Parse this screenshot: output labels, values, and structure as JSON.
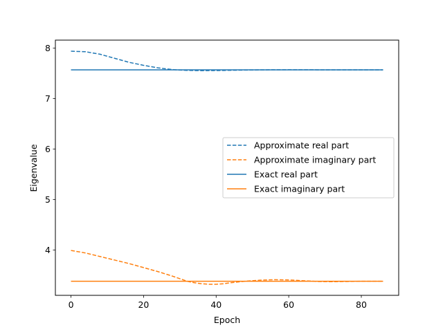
{
  "chart_data": {
    "type": "line",
    "title": "",
    "xlabel": "Epoch",
    "ylabel": "Eigenvalue",
    "xlim": [
      -4.3,
      90.3
    ],
    "ylim": [
      3.1,
      8.16
    ],
    "xticks": [
      0,
      20,
      40,
      60,
      80
    ],
    "yticks": [
      4,
      5,
      6,
      7,
      8
    ],
    "grid": false,
    "legend_position": "center-right",
    "series": [
      {
        "name": "Approximate real part",
        "color": "#1f77b4",
        "style": "dashed",
        "x": [
          0,
          4,
          8,
          12,
          16,
          20,
          24,
          28,
          32,
          36,
          40,
          44,
          48,
          52,
          56,
          60,
          64,
          68,
          72,
          76,
          80,
          86
        ],
        "y": [
          7.94,
          7.93,
          7.88,
          7.8,
          7.72,
          7.66,
          7.61,
          7.575,
          7.56,
          7.555,
          7.557,
          7.562,
          7.567,
          7.57,
          7.572,
          7.573,
          7.572,
          7.571,
          7.57,
          7.57,
          7.57,
          7.57
        ]
      },
      {
        "name": "Approximate imaginary part",
        "color": "#ff7f0e",
        "style": "dashed",
        "x": [
          0,
          4,
          8,
          12,
          16,
          20,
          24,
          28,
          30,
          32,
          34,
          36,
          38,
          40,
          42,
          44,
          48,
          52,
          56,
          60,
          64,
          68,
          72,
          76,
          80,
          86
        ],
        "y": [
          3.99,
          3.94,
          3.87,
          3.8,
          3.73,
          3.65,
          3.57,
          3.48,
          3.43,
          3.38,
          3.35,
          3.33,
          3.32,
          3.32,
          3.33,
          3.35,
          3.38,
          3.4,
          3.41,
          3.405,
          3.39,
          3.375,
          3.37,
          3.375,
          3.38,
          3.38
        ]
      },
      {
        "name": "Exact real part",
        "color": "#1f77b4",
        "style": "solid",
        "x": [
          0,
          86
        ],
        "y": [
          7.57,
          7.57
        ]
      },
      {
        "name": "Exact imaginary part",
        "color": "#ff7f0e",
        "style": "solid",
        "x": [
          0,
          86
        ],
        "y": [
          3.38,
          3.38
        ]
      }
    ]
  }
}
